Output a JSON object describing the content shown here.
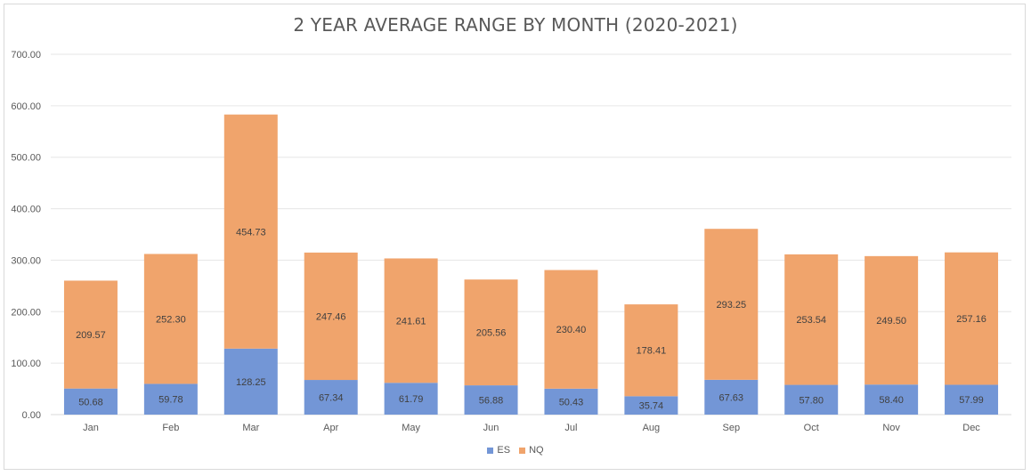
{
  "chart_data": {
    "type": "bar",
    "stacked": true,
    "title": "2 YEAR AVERAGE RANGE BY MONTH (2020-2021)",
    "categories": [
      "Jan",
      "Feb",
      "Mar",
      "Apr",
      "May",
      "Jun",
      "Jul",
      "Aug",
      "Sep",
      "Oct",
      "Nov",
      "Dec"
    ],
    "series": [
      {
        "name": "ES",
        "color": "#7396d6",
        "values": [
          50.68,
          59.78,
          128.25,
          67.34,
          61.79,
          56.88,
          50.43,
          35.74,
          67.63,
          57.8,
          58.4,
          57.99
        ],
        "labels": [
          "50.68",
          "59.78",
          "128.25",
          "67.34",
          "61.79",
          "56.88",
          "50.43",
          "35.74",
          "67.63",
          "57.80",
          "58.40",
          "57.99"
        ]
      },
      {
        "name": "NQ",
        "color": "#f0a46c",
        "values": [
          209.57,
          252.3,
          454.73,
          247.46,
          241.61,
          205.56,
          230.4,
          178.41,
          293.25,
          253.54,
          249.5,
          257.16
        ],
        "labels": [
          "209.57",
          "252.30",
          "454.73",
          "247.46",
          "241.61",
          "205.56",
          "230.40",
          "178.41",
          "293.25",
          "253.54",
          "249.50",
          "257.16"
        ]
      }
    ],
    "ylim": [
      0,
      700
    ],
    "yticks": [
      "0.00",
      "100.00",
      "200.00",
      "300.00",
      "400.00",
      "500.00",
      "600.00",
      "700.00"
    ],
    "grid": true,
    "legend_position": "bottom"
  }
}
